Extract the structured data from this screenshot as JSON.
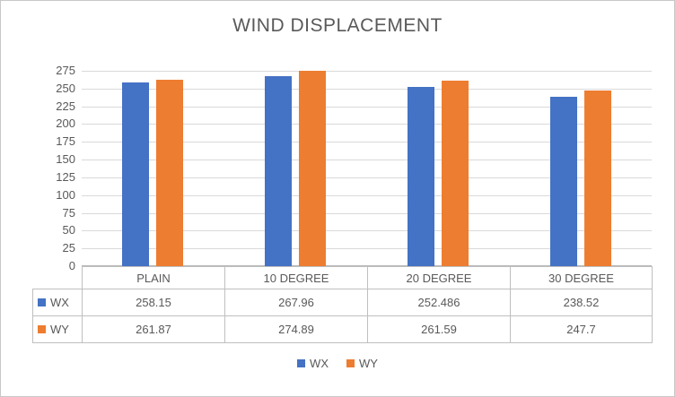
{
  "title": "WIND DISPLACEMENT",
  "chart_data": {
    "type": "bar",
    "title": "WIND DISPLACEMENT",
    "categories": [
      "PLAIN",
      "10 DEGREE",
      "20 DEGREE",
      "30 DEGREE"
    ],
    "series": [
      {
        "name": "WX",
        "color": "#4472C4",
        "values": [
          258.15,
          267.96,
          252.486,
          238.52
        ]
      },
      {
        "name": "WY",
        "color": "#ED7D31",
        "values": [
          261.87,
          274.89,
          261.59,
          247.7
        ]
      }
    ],
    "xlabel": "",
    "ylabel": "",
    "ylim": [
      0,
      275
    ],
    "yticks": [
      0,
      25,
      50,
      75,
      100,
      125,
      150,
      175,
      200,
      225,
      250,
      275
    ],
    "grid": true,
    "legend_position": "bottom",
    "data_table": true
  },
  "colors": {
    "wx": "#4472C4",
    "wy": "#ED7D31",
    "gridline": "#d9d9d9",
    "text": "#595959",
    "table_border": "#bfbfbf"
  }
}
